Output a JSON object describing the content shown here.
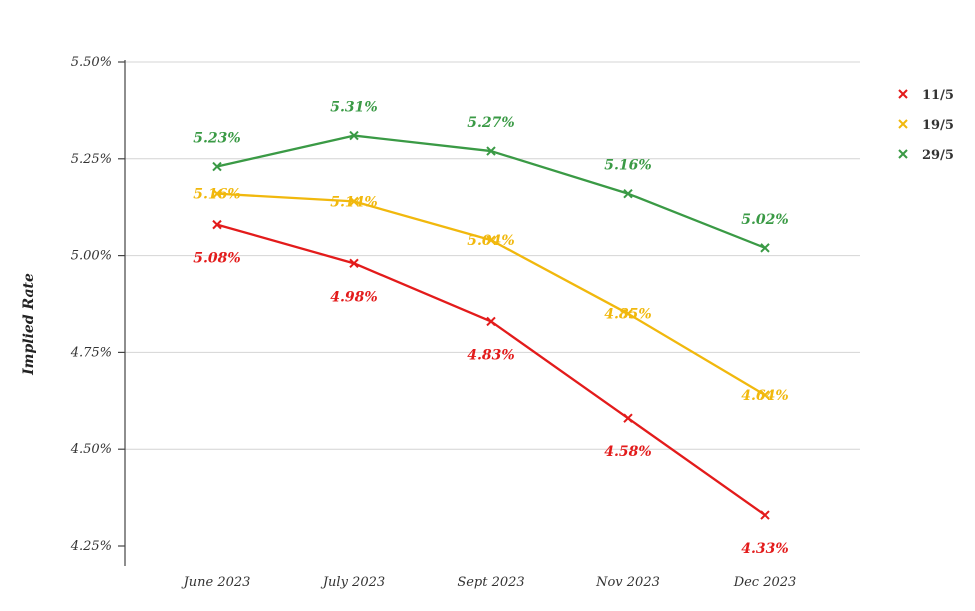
{
  "chart_data": {
    "type": "line",
    "title": "",
    "xlabel": "",
    "ylabel": "Implied Rate",
    "categories": [
      "June 2023",
      "July 2023",
      "Sept 2023",
      "Nov 2023",
      "Dec 2023"
    ],
    "ylim": [
      4.25,
      5.5
    ],
    "yticks": [
      4.25,
      4.5,
      4.75,
      5.0,
      5.25,
      5.5
    ],
    "ytick_labels": [
      "4.25%",
      "4.50%",
      "4.75%",
      "5.00%",
      "5.25%",
      "5.50%"
    ],
    "grid": true,
    "legend_position": "top-right",
    "series": [
      {
        "name": "11/5",
        "color": "#e31b1b",
        "values": [
          5.08,
          4.98,
          4.83,
          4.58,
          4.33
        ],
        "labels": [
          "5.08%",
          "4.98%",
          "4.83%",
          "4.58%",
          "4.33%"
        ],
        "label_side": "below"
      },
      {
        "name": "19/5",
        "color": "#f1b80d",
        "values": [
          5.16,
          5.14,
          5.04,
          4.85,
          4.64
        ],
        "labels": [
          "5.16%",
          "5.14%",
          "5.04%",
          "4.85%",
          "4.64%"
        ],
        "label_side": "on"
      },
      {
        "name": "29/5",
        "color": "#3a9a45",
        "values": [
          5.23,
          5.31,
          5.27,
          5.16,
          5.02
        ],
        "labels": [
          "5.23%",
          "5.31%",
          "5.27%",
          "5.16%",
          "5.02%"
        ],
        "label_side": "above"
      }
    ]
  }
}
